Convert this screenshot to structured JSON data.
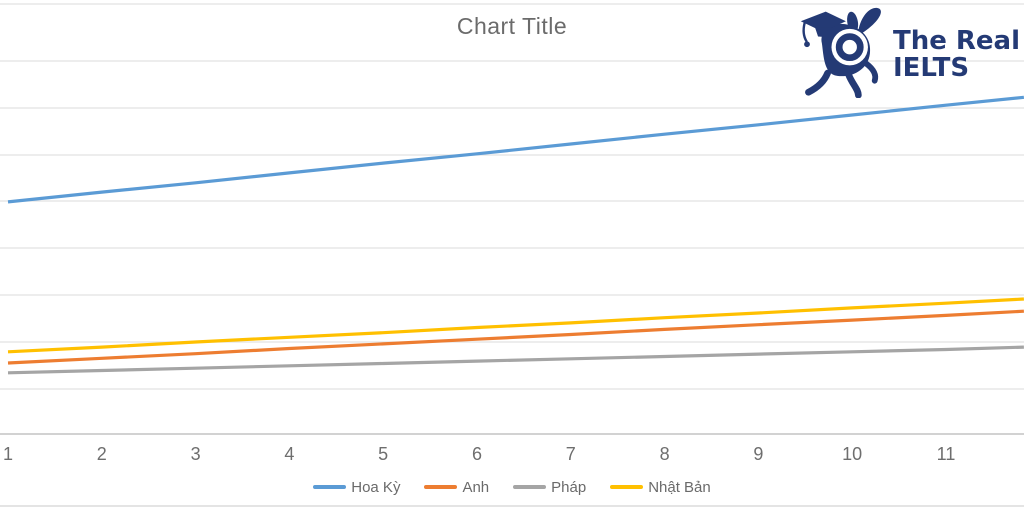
{
  "page": {
    "background": "#ffffff",
    "divider_color": "#e4e4e4"
  },
  "logo": {
    "line1": "The Real",
    "line2": "IELTS",
    "color": "#243a75",
    "mascot": "rabbit-graduation-cap-mascot-icon"
  },
  "chart_data": {
    "type": "line",
    "title": "Chart Title",
    "title_color": "#6b6b6b",
    "xlabel": "",
    "ylabel": "",
    "categories": [
      1,
      2,
      3,
      4,
      5,
      6,
      7,
      8,
      9,
      10,
      11
    ],
    "x_visible_range": [
      1,
      11.83
    ],
    "y_axis": {
      "tick_labels_visible": false,
      "gridlines": true,
      "gridline_color": "#e2e2e2",
      "axis_line_color": "#c4c4c4",
      "units_per_gridline": 1,
      "visible_value_range": [
        0,
        9.2
      ]
    },
    "legend_position": "bottom-center",
    "axis_label_color": "#6e6e6e",
    "series": [
      {
        "name": "Hoa Kỳ",
        "color": "#5b9bd5",
        "x": [
          1,
          2,
          3,
          4,
          5,
          6,
          7,
          8,
          9,
          10,
          11,
          11.83
        ],
        "values": [
          4.97,
          5.18,
          5.38,
          5.59,
          5.8,
          6.0,
          6.21,
          6.42,
          6.62,
          6.83,
          7.04,
          7.21
        ]
      },
      {
        "name": "Anh",
        "color": "#ed7d31",
        "x": [
          1,
          2,
          3,
          4,
          5,
          6,
          7,
          8,
          9,
          10,
          11,
          11.83
        ],
        "values": [
          1.52,
          1.62,
          1.72,
          1.83,
          1.93,
          2.03,
          2.13,
          2.24,
          2.34,
          2.44,
          2.54,
          2.63
        ]
      },
      {
        "name": "Pháp",
        "color": "#a5a5a5",
        "x": [
          1,
          2,
          3,
          4,
          5,
          6,
          7,
          8,
          9,
          10,
          11,
          11.83
        ],
        "values": [
          1.31,
          1.36,
          1.41,
          1.46,
          1.51,
          1.56,
          1.61,
          1.66,
          1.71,
          1.76,
          1.81,
          1.86
        ]
      },
      {
        "name": "Nhật Bản",
        "color": "#ffc000",
        "x": [
          1,
          2,
          3,
          4,
          5,
          6,
          7,
          8,
          9,
          10,
          11,
          11.83
        ],
        "values": [
          1.76,
          1.86,
          1.97,
          2.07,
          2.17,
          2.28,
          2.38,
          2.49,
          2.59,
          2.7,
          2.8,
          2.89
        ]
      }
    ]
  }
}
